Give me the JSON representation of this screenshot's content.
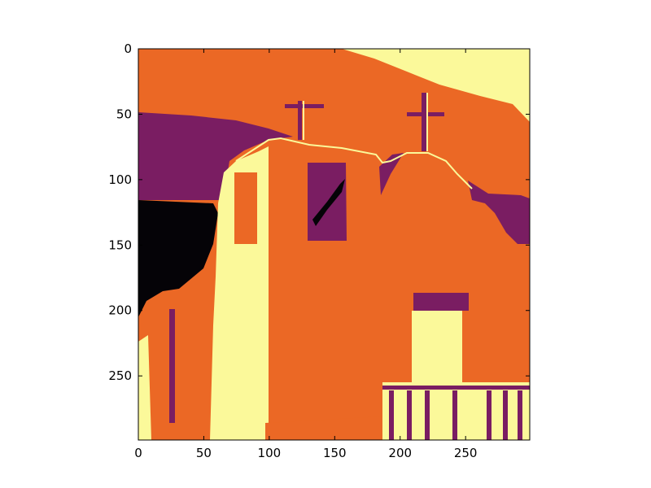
{
  "chart_data": {
    "type": "heatmap",
    "title": "",
    "xlabel": "",
    "ylabel": "",
    "xlim": [
      0,
      299
    ],
    "ylim": [
      299,
      0
    ],
    "x_ticks": [
      0,
      50,
      100,
      150,
      200,
      250
    ],
    "y_ticks": [
      0,
      50,
      100,
      150,
      200,
      250
    ],
    "x_tick_labels": [
      "0",
      "50",
      "100",
      "150",
      "200",
      "250"
    ],
    "y_tick_labels": [
      "0",
      "50",
      "100",
      "150",
      "200",
      "250"
    ],
    "colormap": "inferno",
    "levels": [
      0,
      1,
      2,
      3
    ],
    "level_colors": [
      "#050307",
      "#7a1d62",
      "#eb6825",
      "#fbf99a"
    ],
    "image_description": "posterized 4-level image of an adobe church facade with crosses on the roof, a window, a door and a fence",
    "grid": false
  }
}
